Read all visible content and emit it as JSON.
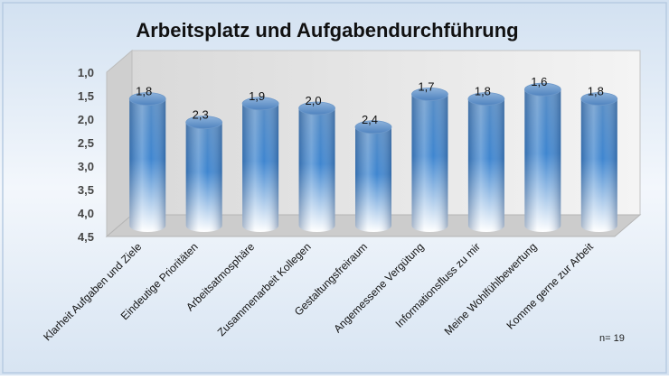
{
  "chart_data": {
    "type": "bar",
    "title": "Arbeitsplatz und Aufgabendurchführung",
    "categories": [
      "Klarheit Aufgaben und Ziele",
      "Eindeutige Prioritäten",
      "Arbeitsatmosphäre",
      "Zusammenarbeit Kollegen",
      "Gestaltungsfreiraum",
      "Angemessene Vergütung",
      "Informationsfluss zu mir",
      "Meine Wohlfühlbewertung",
      "Komme gerne zur Arbeit"
    ],
    "values": [
      1.8,
      2.3,
      1.9,
      2.0,
      2.4,
      1.7,
      1.8,
      1.6,
      1.8
    ],
    "value_labels": [
      "1,8",
      "2,3",
      "1,9",
      "2,0",
      "2,4",
      "1,7",
      "1,8",
      "1,6",
      "1,8"
    ],
    "ylim": [
      1.0,
      4.5
    ],
    "y_reversed": true,
    "y_ticks": [
      "1,0",
      "1,5",
      "2,0",
      "2,5",
      "3,0",
      "3,5",
      "4,0",
      "4,5"
    ],
    "bar_shape": "cylinder",
    "colors": {
      "bar": "#4a86c8",
      "bar_light": "#ffffff",
      "wall": "#e8e8e8"
    },
    "grid": false,
    "legend": "none",
    "note": "n= 19"
  }
}
